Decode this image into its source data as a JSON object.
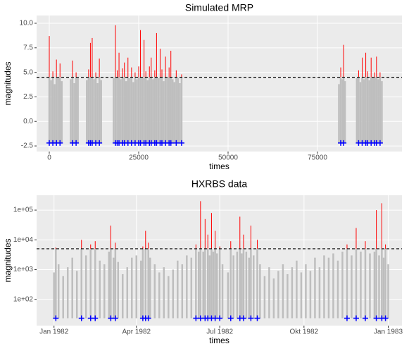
{
  "chart_data": [
    {
      "type": "spike",
      "title": "Simulated MRP",
      "x_label": "times",
      "y_label": "magnitudes",
      "x": [
        0,
        500,
        1000,
        1500,
        2000,
        2500,
        3000,
        3500,
        6000,
        6500,
        7000,
        7500,
        8000,
        10500,
        11000,
        11500,
        12000,
        12500,
        13000,
        13500,
        14000,
        14500,
        18000,
        18500,
        19000,
        19500,
        20000,
        20500,
        21000,
        21500,
        22000,
        22500,
        23000,
        23500,
        24000,
        24500,
        25000,
        25500,
        26000,
        26500,
        27000,
        27500,
        28000,
        28500,
        29000,
        29500,
        30000,
        30500,
        31000,
        31500,
        32000,
        32500,
        33000,
        33500,
        34000,
        34500,
        35000,
        35500,
        36000,
        36500,
        37000,
        81000,
        81500,
        82000,
        82300,
        82700,
        86000,
        86500,
        87000,
        87500,
        88000,
        88500,
        89000,
        89500,
        90000,
        90500,
        91000,
        91500,
        92000,
        92500,
        93000
      ],
      "values": [
        8.7,
        4.2,
        5.1,
        3.8,
        6.3,
        4.4,
        5.9,
        4.1,
        4.3,
        6.2,
        3.9,
        5.0,
        4.4,
        4.2,
        5.3,
        8.0,
        8.5,
        4.3,
        5.0,
        3.9,
        6.4,
        4.2,
        4.4,
        9.8,
        5.2,
        7.0,
        4.3,
        5.4,
        6.0,
        4.1,
        6.5,
        4.4,
        5.5,
        4.0,
        5.0,
        4.3,
        5.6,
        9.3,
        4.4,
        8.3,
        5.1,
        4.2,
        5.6,
        6.5,
        4.3,
        5.2,
        9.0,
        4.4,
        7.4,
        5.3,
        4.1,
        6.6,
        4.4,
        5.5,
        7.2,
        4.3,
        4.0,
        5.2,
        4.4,
        3.9,
        4.8,
        3.8,
        5.5,
        4.3,
        7.8,
        4.1,
        4.4,
        5.2,
        4.0,
        6.5,
        4.3,
        7.0,
        5.1,
        4.2,
        6.5,
        4.4,
        5.0,
        6.6,
        4.3,
        5.0,
        4.1
      ],
      "threshold": 4.5,
      "event_level": -2.2,
      "color": "#bebebe",
      "exceed_color": "#ff0000",
      "event_color": "#0000ff",
      "log_y": false,
      "grid": true,
      "xlim": [
        -3543,
        98622
      ],
      "ylim": [
        -3.07,
        10.79
      ],
      "xticks": [
        0,
        25000,
        50000,
        75000
      ],
      "yticks": [
        -2.5,
        {
          "value": 0,
          "label": "0.0"
        },
        2.5,
        {
          "value": 5,
          "label": "5.0"
        },
        7.5,
        {
          "value": 10,
          "label": "10.0"
        }
      ]
    },
    {
      "type": "spike",
      "title": "HXRBS data",
      "x_label": "times",
      "y_label": "magnitudes",
      "x": [
        0,
        2,
        5,
        10,
        15,
        20,
        25,
        30,
        35,
        40,
        45,
        50,
        55,
        60,
        62,
        65,
        67,
        70,
        75,
        80,
        85,
        90,
        95,
        97,
        100,
        103,
        105,
        110,
        115,
        120,
        125,
        130,
        135,
        140,
        145,
        150,
        155,
        158,
        160,
        163,
        165,
        168,
        170,
        172,
        174,
        176,
        178,
        181,
        184,
        190,
        193,
        196,
        200,
        203,
        205,
        207,
        210,
        213,
        215,
        218,
        222,
        225,
        230,
        235,
        240,
        245,
        250,
        255,
        260,
        265,
        270,
        275,
        280,
        285,
        290,
        295,
        300,
        305,
        310,
        315,
        320,
        325,
        330,
        335,
        340,
        345,
        350,
        352,
        355,
        358,
        360,
        362,
        365
      ],
      "values": [
        800,
        5500,
        1500,
        600,
        1200,
        2500,
        900,
        10000,
        3000,
        7000,
        9000,
        2000,
        1500,
        4000,
        30000,
        2500,
        8000,
        1800,
        700,
        1200,
        2500,
        3000,
        2000,
        6000,
        20000,
        8000,
        2500,
        1500,
        800,
        1200,
        600,
        1000,
        2000,
        1500,
        3000,
        2500,
        7000,
        4000,
        200000,
        4000,
        50000,
        15000,
        3000,
        80000,
        4000,
        20000,
        3500,
        6000,
        1500,
        800,
        9000,
        3000,
        4000,
        60000,
        3500,
        15000,
        4000,
        2500,
        30000,
        3000,
        10000,
        1500,
        600,
        1200,
        500,
        900,
        1500,
        700,
        1200,
        2000,
        800,
        1500,
        900,
        2500,
        1200,
        3000,
        2500,
        3500,
        2000,
        4000,
        7000,
        3000,
        25000,
        4000,
        9000,
        3500,
        4000,
        100000,
        3000,
        170000,
        2500,
        7000,
        1500
      ],
      "threshold": 5000,
      "event_level": 23,
      "color": "#bebebe",
      "exceed_color": "#ff0000",
      "event_color": "#0000ff",
      "log_y": true,
      "grid": true,
      "xlim": [
        -19,
        380
      ],
      "ylim": [
        13,
        316000
      ],
      "xticks": [
        {
          "value": 0,
          "label": "Jan 1982"
        },
        {
          "value": 90,
          "label": "Apr 1982"
        },
        {
          "value": 181,
          "label": "Jul 1982"
        },
        {
          "value": 273,
          "label": "Okt 1982"
        },
        {
          "value": 365,
          "label": "Jan 1983"
        }
      ],
      "yticks": [
        {
          "value": 100,
          "label": "1e+02"
        },
        {
          "value": 1000,
          "label": "1e+03"
        },
        {
          "value": 10000,
          "label": "1e+04"
        },
        {
          "value": 100000,
          "label": "1e+05"
        }
      ]
    }
  ]
}
